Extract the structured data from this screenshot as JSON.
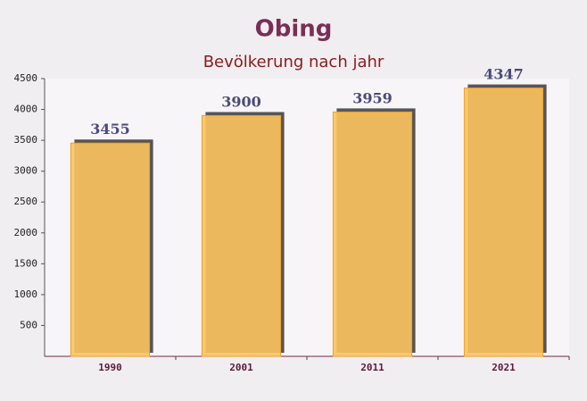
{
  "chart_data": {
    "type": "bar",
    "title": "Obing",
    "subtitle": "Bevölkerung nach jahr",
    "categories": [
      "1990",
      "2001",
      "2011",
      "2021"
    ],
    "values": [
      3455,
      3900,
      3959,
      4347
    ],
    "color": "#fcc35e",
    "ylim": [
      0,
      4500
    ],
    "yticks": [
      500,
      1000,
      1500,
      2000,
      2500,
      3000,
      3500,
      4000,
      4500
    ]
  }
}
